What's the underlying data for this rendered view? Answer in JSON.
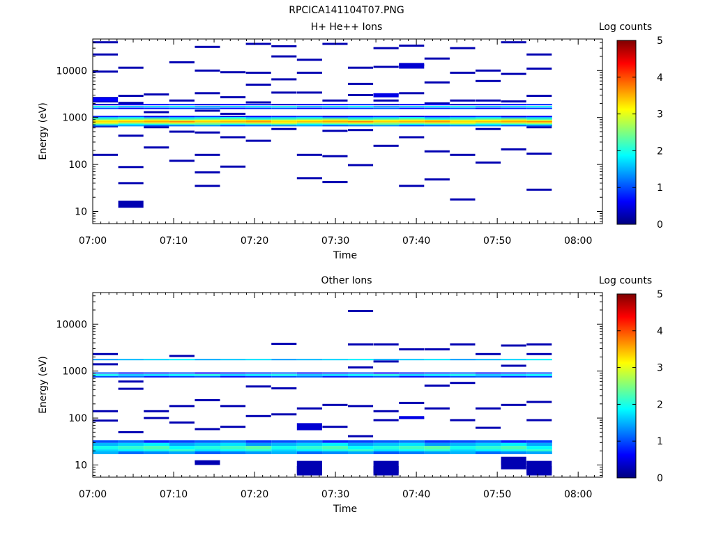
{
  "figure": {
    "title": "RPCICA141104T07.PNG"
  },
  "colorscale": {
    "stops": [
      "#00007f",
      "#0000ff",
      "#007fff",
      "#00ffff",
      "#7fff7f",
      "#ffff00",
      "#ff7f00",
      "#ff0000",
      "#7f0000"
    ]
  },
  "chart_data": [
    {
      "type": "heatmap",
      "title": "H+ He++ Ions",
      "xlabel": "Time",
      "ylabel": "Energy (eV)",
      "yscale": "log",
      "xlim": [
        "07:00",
        "08:03"
      ],
      "ylim": [
        5.5,
        47000
      ],
      "xticks": [
        "07:00",
        "07:10",
        "07:20",
        "07:30",
        "07:40",
        "07:50",
        "08:00"
      ],
      "yticks": [
        "10",
        "100",
        "1000",
        "10000"
      ],
      "colorbar": {
        "label": "Log counts",
        "range": [
          0,
          5
        ],
        "ticks": [
          "0",
          "1",
          "2",
          "3",
          "4",
          "5"
        ]
      },
      "time_bins": [
        "07:00",
        "07:03",
        "07:06",
        "07:10",
        "07:13",
        "07:16",
        "07:19",
        "07:22",
        "07:26",
        "07:29",
        "07:32",
        "07:35",
        "07:38",
        "07:42",
        "07:45",
        "07:48",
        "07:51",
        "07:54"
      ],
      "steady_bands": [
        {
          "e_lo": 1820,
          "e_hi": 1950,
          "value": 0.6
        },
        {
          "e_lo": 1660,
          "e_hi": 1760,
          "value": 1.7
        },
        {
          "e_lo": 1520,
          "e_hi": 1620,
          "value": 0.8
        },
        {
          "e_lo": 1030,
          "e_hi": 1090,
          "value": 0.7
        },
        {
          "e_lo": 960,
          "e_hi": 1020,
          "value": 1.6
        },
        {
          "e_lo": 900,
          "e_hi": 955,
          "value": 2.4
        },
        {
          "e_lo": 845,
          "e_hi": 895,
          "value": 3.1
        },
        {
          "e_lo": 790,
          "e_hi": 840,
          "value": 3.5
        },
        {
          "e_lo": 745,
          "e_hi": 785,
          "value": 2.9
        },
        {
          "e_lo": 700,
          "e_hi": 740,
          "value": 2.1
        },
        {
          "e_lo": 655,
          "e_hi": 695,
          "value": 1.2
        }
      ],
      "cells": [
        [
          0,
          40000
        ],
        [
          0,
          22000
        ],
        [
          0,
          9500
        ],
        [
          0,
          2600
        ],
        [
          0,
          2200
        ],
        [
          0,
          650
        ],
        [
          0,
          160
        ],
        [
          1,
          11500
        ],
        [
          1,
          2900
        ],
        [
          1,
          2050
        ],
        [
          1,
          410
        ],
        [
          1,
          88
        ],
        [
          1,
          40
        ],
        [
          2,
          3100
        ],
        [
          2,
          1300
        ],
        [
          2,
          620
        ],
        [
          2,
          230
        ],
        [
          3,
          15000
        ],
        [
          3,
          2300
        ],
        [
          3,
          500
        ],
        [
          3,
          120
        ],
        [
          4,
          32000
        ],
        [
          4,
          10000
        ],
        [
          4,
          3300
        ],
        [
          4,
          1400
        ],
        [
          4,
          480
        ],
        [
          4,
          160
        ],
        [
          4,
          68
        ],
        [
          4,
          35
        ],
        [
          5,
          9200
        ],
        [
          5,
          2700
        ],
        [
          5,
          1200
        ],
        [
          5,
          380
        ],
        [
          5,
          90
        ],
        [
          6,
          37000
        ],
        [
          6,
          9000
        ],
        [
          6,
          5000
        ],
        [
          6,
          2100
        ],
        [
          6,
          320
        ],
        [
          7,
          33000
        ],
        [
          7,
          20000
        ],
        [
          7,
          6500
        ],
        [
          7,
          3400
        ],
        [
          7,
          570
        ],
        [
          8,
          17000
        ],
        [
          8,
          9000
        ],
        [
          8,
          3400
        ],
        [
          8,
          160
        ],
        [
          8,
          51
        ],
        [
          9,
          37000
        ],
        [
          9,
          2300
        ],
        [
          9,
          520
        ],
        [
          9,
          150
        ],
        [
          9,
          42
        ],
        [
          10,
          11500
        ],
        [
          10,
          5200
        ],
        [
          10,
          3000
        ],
        [
          10,
          540
        ],
        [
          10,
          97
        ],
        [
          11,
          30000
        ],
        [
          11,
          12000
        ],
        [
          11,
          3100
        ],
        [
          11,
          2300
        ],
        [
          11,
          250
        ],
        [
          12,
          34000
        ],
        [
          12,
          13000
        ],
        [
          12,
          3300
        ],
        [
          12,
          380
        ],
        [
          12,
          35
        ],
        [
          13,
          18000
        ],
        [
          13,
          5600
        ],
        [
          13,
          2000
        ],
        [
          13,
          190
        ],
        [
          13,
          48
        ],
        [
          14,
          30000
        ],
        [
          14,
          9000
        ],
        [
          14,
          2300
        ],
        [
          14,
          160
        ],
        [
          14,
          18
        ],
        [
          15,
          10000
        ],
        [
          15,
          6000
        ],
        [
          15,
          2300
        ],
        [
          15,
          570
        ],
        [
          15,
          110
        ],
        [
          16,
          40000
        ],
        [
          16,
          8500
        ],
        [
          16,
          2200
        ],
        [
          16,
          210
        ],
        [
          17,
          22000
        ],
        [
          17,
          11000
        ],
        [
          17,
          2900
        ],
        [
          17,
          620
        ],
        [
          17,
          170
        ],
        [
          17,
          29
        ]
      ]
    },
    {
      "type": "heatmap",
      "title": "Other Ions",
      "xlabel": "Time",
      "ylabel": "Energy (eV)",
      "yscale": "log",
      "xlim": [
        "07:00",
        "08:03"
      ],
      "ylim": [
        5.5,
        47000
      ],
      "xticks": [
        "07:00",
        "07:10",
        "07:20",
        "07:30",
        "07:40",
        "07:50",
        "08:00"
      ],
      "yticks": [
        "10",
        "100",
        "1000",
        "10000"
      ],
      "colorbar": {
        "label": "Log counts",
        "range": [
          0,
          5
        ],
        "ticks": [
          "0",
          "1",
          "2",
          "3",
          "4",
          "5"
        ]
      },
      "time_bins": [
        "07:00",
        "07:03",
        "07:06",
        "07:10",
        "07:13",
        "07:16",
        "07:19",
        "07:22",
        "07:26",
        "07:29",
        "07:32",
        "07:35",
        "07:38",
        "07:42",
        "07:45",
        "07:48",
        "07:51",
        "07:54"
      ],
      "steady_bands": [
        {
          "e_lo": 1720,
          "e_hi": 1820,
          "value": 1.6
        },
        {
          "e_lo": 880,
          "e_hi": 940,
          "value": 0.9
        },
        {
          "e_lo": 790,
          "e_hi": 860,
          "value": 1.8
        },
        {
          "e_lo": 730,
          "e_hi": 785,
          "value": 0.9
        },
        {
          "e_lo": 29.5,
          "e_hi": 33.5,
          "value": 1.0
        },
        {
          "e_lo": 25.5,
          "e_hi": 29.5,
          "value": 1.6
        },
        {
          "e_lo": 21.5,
          "e_hi": 25.5,
          "value": 2.1
        },
        {
          "e_lo": 19.5,
          "e_hi": 21.5,
          "value": 1.9
        },
        {
          "e_lo": 17.0,
          "e_hi": 19.5,
          "value": 1.3
        }
      ],
      "cells": [
        [
          0,
          2300
        ],
        [
          0,
          1400
        ],
        [
          0,
          140
        ],
        [
          0,
          88
        ],
        [
          1,
          600
        ],
        [
          1,
          420
        ],
        [
          1,
          50
        ],
        [
          2,
          140
        ],
        [
          2,
          100
        ],
        [
          3,
          2100
        ],
        [
          3,
          180
        ],
        [
          3,
          80
        ],
        [
          4,
          240
        ],
        [
          4,
          58
        ],
        [
          4,
          12
        ],
        [
          5,
          180
        ],
        [
          5,
          65
        ],
        [
          6,
          470
        ],
        [
          6,
          110
        ],
        [
          7,
          3800
        ],
        [
          7,
          430
        ],
        [
          7,
          120
        ],
        [
          8,
          160
        ],
        [
          8,
          9
        ],
        [
          9,
          190
        ],
        [
          9,
          65
        ],
        [
          10,
          19000
        ],
        [
          10,
          3700
        ],
        [
          10,
          1200
        ],
        [
          10,
          180
        ],
        [
          10,
          41
        ],
        [
          11,
          3700
        ],
        [
          11,
          1600
        ],
        [
          11,
          140
        ],
        [
          11,
          90
        ],
        [
          11,
          9
        ],
        [
          12,
          2900
        ],
        [
          12,
          210
        ],
        [
          12,
          100
        ],
        [
          13,
          2900
        ],
        [
          13,
          490
        ],
        [
          13,
          160
        ],
        [
          14,
          3700
        ],
        [
          14,
          560
        ],
        [
          14,
          90
        ],
        [
          15,
          2300
        ],
        [
          15,
          160
        ],
        [
          15,
          62
        ],
        [
          16,
          3500
        ],
        [
          16,
          1300
        ],
        [
          16,
          190
        ],
        [
          16,
          11
        ],
        [
          17,
          3700
        ],
        [
          17,
          2300
        ],
        [
          17,
          220
        ],
        [
          17,
          90
        ],
        [
          17,
          9
        ]
      ]
    }
  ]
}
